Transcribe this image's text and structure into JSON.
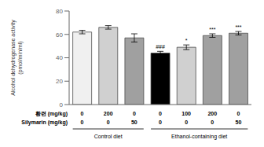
{
  "chart_data": {
    "type": "bar",
    "categories": [
      null,
      null,
      null,
      null,
      null,
      null,
      null
    ],
    "values": [
      62,
      66,
      57,
      44,
      49,
      59,
      61
    ],
    "errors": [
      1.5,
      1.5,
      3.5,
      1.5,
      2.0,
      1.5,
      1.5
    ],
    "colors": [
      "#f0f0f0",
      "#d0d0d0",
      "#a0a0a0",
      "#000000",
      "#d0d0d0",
      "#a0a0a0",
      "#a0a0a0"
    ],
    "annotations": [
      null,
      null,
      null,
      "###",
      "*",
      "***",
      "***"
    ],
    "ylabel": "Alcohol dehydrogenase activity\n(pmol/min/ml)",
    "ylim": [
      0,
      80
    ],
    "yticks": [
      0,
      20,
      40,
      60,
      80
    ],
    "grid": false,
    "rows": [
      {
        "label": "황련 (mg/kg)",
        "values": [
          0,
          200,
          0,
          0,
          100,
          200,
          0
        ]
      },
      {
        "label": "Silymarin (mg/kg)",
        "values": [
          0,
          0,
          50,
          0,
          0,
          0,
          50
        ]
      }
    ],
    "groups": [
      {
        "label": "Control diet",
        "members": [
          0,
          1,
          2
        ]
      },
      {
        "label": "Ethanol-containing diet",
        "members": [
          3,
          4,
          5,
          6
        ]
      }
    ]
  }
}
